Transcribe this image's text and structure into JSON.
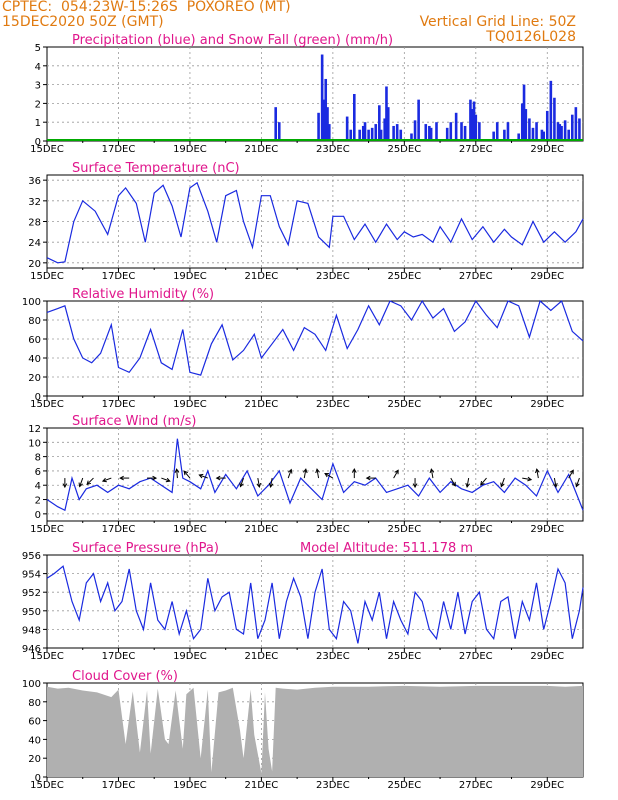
{
  "header": {
    "line1": "CPTEC:  054:23W-15:26S  POXOREO (MT)",
    "line2": "15DEC2020 50Z (GMT)",
    "right1": "Vertical Grid Line: 50Z",
    "right2": "TQ0126L028"
  },
  "colors": {
    "title": "#e0168c",
    "header": "#e07a10",
    "series": "#1a2ae0",
    "snow": "#00aa00",
    "cloud": "#b0b0b0",
    "grid": "#9a9a9a"
  },
  "x_axis": {
    "range_days": [
      15,
      30
    ],
    "ticks": [
      "15DEC",
      "17DEC",
      "19DEC",
      "21DEC",
      "23DEC",
      "25DEC",
      "27DEC",
      "29DEC"
    ],
    "tick_days": [
      15,
      17,
      19,
      21,
      23,
      25,
      27,
      29
    ]
  },
  "chart_data": [
    {
      "id": "precip",
      "type": "bar",
      "title": "Precipitation (blue) and Snow Fall (green) (mm/h)",
      "ylim": [
        0,
        5
      ],
      "yticks": [
        "0",
        "1",
        "2",
        "3",
        "4",
        "5"
      ],
      "series": [
        {
          "name": "Precipitation",
          "x": [
            21.4,
            21.5,
            22.6,
            22.7,
            22.75,
            22.8,
            22.85,
            22.9,
            23.4,
            23.5,
            23.6,
            23.75,
            23.85,
            23.9,
            24.0,
            24.1,
            24.2,
            24.3,
            24.35,
            24.45,
            24.5,
            24.55,
            24.7,
            24.8,
            24.9,
            25.2,
            25.3,
            25.4,
            25.6,
            25.7,
            25.75,
            25.9,
            26.2,
            26.3,
            26.45,
            26.6,
            26.7,
            26.85,
            26.9,
            26.95,
            27.0,
            27.1,
            27.5,
            27.6,
            27.8,
            27.9,
            28.2,
            28.3,
            28.35,
            28.4,
            28.5,
            28.6,
            28.7,
            28.85,
            28.9,
            29.0,
            29.1,
            29.2,
            29.3,
            29.35,
            29.4,
            29.5,
            29.6,
            29.7,
            29.8,
            29.9
          ],
          "values": [
            1.8,
            1.0,
            1.5,
            4.6,
            2.2,
            3.3,
            1.8,
            0.9,
            1.3,
            0.6,
            2.5,
            0.6,
            0.8,
            1.0,
            0.6,
            0.7,
            0.9,
            1.9,
            0.6,
            1.2,
            2.9,
            1.8,
            0.8,
            0.9,
            0.6,
            0.4,
            1.1,
            2.2,
            0.9,
            0.8,
            0.7,
            1.0,
            0.7,
            1.0,
            1.5,
            1.0,
            0.8,
            2.2,
            1.7,
            2.1,
            1.4,
            1.0,
            0.5,
            1.0,
            0.6,
            1.0,
            0.4,
            2.0,
            3.0,
            1.7,
            1.2,
            0.7,
            1.0,
            0.6,
            0.5,
            1.6,
            3.2,
            2.3,
            1.0,
            0.9,
            0.8,
            1.1,
            0.6,
            1.4,
            1.8,
            1.2
          ]
        },
        {
          "name": "Snow Fall",
          "x": [
            15,
            30
          ],
          "values": [
            0,
            0
          ]
        }
      ]
    },
    {
      "id": "temp",
      "type": "line",
      "title": "Surface Temperature (nC)",
      "ylim": [
        19,
        37
      ],
      "yticks": [
        "20",
        "24",
        "28",
        "32",
        "36"
      ],
      "series": [
        {
          "name": "Surface Temperature",
          "x": [
            15,
            15.3,
            15.5,
            15.75,
            16.0,
            16.35,
            16.7,
            17.0,
            17.2,
            17.5,
            17.75,
            18.0,
            18.25,
            18.5,
            18.75,
            19.0,
            19.2,
            19.5,
            19.75,
            20.0,
            20.3,
            20.5,
            20.75,
            21.0,
            21.25,
            21.5,
            21.75,
            22.0,
            22.3,
            22.6,
            22.9,
            23.0,
            23.3,
            23.6,
            23.9,
            24.2,
            24.5,
            24.8,
            25.0,
            25.25,
            25.5,
            25.8,
            26.0,
            26.3,
            26.6,
            26.9,
            27.2,
            27.5,
            27.8,
            28.0,
            28.3,
            28.6,
            28.9,
            29.2,
            29.5,
            29.8,
            30
          ],
          "values": [
            21,
            20,
            20.2,
            28,
            32,
            30,
            25.5,
            33,
            34.5,
            31.5,
            24,
            33.5,
            35,
            31,
            25,
            34.5,
            35.5,
            30,
            24,
            33,
            34,
            28,
            23,
            33,
            33,
            27,
            23.5,
            32,
            31.5,
            25,
            23,
            29,
            29,
            24.5,
            27.5,
            24,
            27.5,
            24.5,
            26,
            25,
            25.5,
            24,
            27,
            24,
            28.5,
            24.5,
            27,
            24,
            26.5,
            25,
            23.5,
            28,
            24,
            26,
            24,
            26,
            28.5
          ]
        }
      ]
    },
    {
      "id": "rh",
      "type": "line",
      "title": "Relative Humidity (%)",
      "ylim": [
        0,
        100
      ],
      "yticks": [
        "0",
        "20",
        "40",
        "60",
        "80",
        "100"
      ],
      "series": [
        {
          "name": "Relative Humidity",
          "x": [
            15,
            15.3,
            15.5,
            15.75,
            16.0,
            16.25,
            16.5,
            16.8,
            17.0,
            17.3,
            17.6,
            17.9,
            18.2,
            18.5,
            18.8,
            19.0,
            19.3,
            19.6,
            19.9,
            20.2,
            20.5,
            20.8,
            21.0,
            21.3,
            21.6,
            21.9,
            22.2,
            22.5,
            22.8,
            23.1,
            23.4,
            23.7,
            24.0,
            24.3,
            24.6,
            24.9,
            25.2,
            25.5,
            25.8,
            26.1,
            26.4,
            26.7,
            27.0,
            27.3,
            27.6,
            27.9,
            28.2,
            28.5,
            28.8,
            29.1,
            29.4,
            29.7,
            30
          ],
          "values": [
            88,
            92,
            95,
            60,
            40,
            35,
            45,
            75,
            30,
            25,
            40,
            70,
            35,
            28,
            70,
            25,
            22,
            55,
            75,
            38,
            48,
            65,
            40,
            55,
            70,
            48,
            72,
            65,
            48,
            85,
            50,
            70,
            95,
            75,
            100,
            95,
            80,
            100,
            82,
            92,
            68,
            78,
            100,
            85,
            72,
            100,
            95,
            62,
            100,
            90,
            100,
            68,
            58
          ]
        }
      ]
    },
    {
      "id": "wind",
      "type": "line",
      "title": "Surface Wind (m/s)",
      "ylim": [
        -1,
        12
      ],
      "yticks": [
        "0",
        "2",
        "4",
        "6",
        "8",
        "10",
        "12"
      ],
      "series": [
        {
          "name": "Surface Wind",
          "x": [
            15,
            15.3,
            15.5,
            15.7,
            15.9,
            16.1,
            16.4,
            16.7,
            17.0,
            17.3,
            17.6,
            17.9,
            18.2,
            18.5,
            18.65,
            18.8,
            19.0,
            19.3,
            19.5,
            19.7,
            20.0,
            20.3,
            20.6,
            20.9,
            21.2,
            21.5,
            21.8,
            22.1,
            22.4,
            22.7,
            23.0,
            23.3,
            23.6,
            23.9,
            24.2,
            24.5,
            24.8,
            25.1,
            25.4,
            25.7,
            26.0,
            26.3,
            26.6,
            26.9,
            27.2,
            27.5,
            27.8,
            28.1,
            28.4,
            28.7,
            29.0,
            29.3,
            29.6,
            29.8,
            30
          ],
          "values": [
            2,
            1,
            0.5,
            5,
            2,
            3.5,
            4,
            3,
            4,
            3.5,
            4.5,
            5,
            4,
            3,
            10.5,
            5,
            4.5,
            3.5,
            6,
            3,
            5.5,
            3.5,
            6,
            2.5,
            4,
            6,
            1.5,
            5,
            3.5,
            2,
            7,
            3,
            4.5,
            4,
            5,
            3,
            3.5,
            4,
            2.5,
            5,
            3,
            4.5,
            3.5,
            3,
            4,
            4.5,
            3,
            5,
            4,
            2.5,
            6,
            3,
            5.5,
            3,
            0.5
          ]
        }
      ],
      "arrows": [
        {
          "day": 15.5,
          "dir": 180
        },
        {
          "day": 16.0,
          "dir": 200
        },
        {
          "day": 16.3,
          "dir": 225
        },
        {
          "day": 16.8,
          "dir": 250
        },
        {
          "day": 17.3,
          "dir": 270
        },
        {
          "day": 17.8,
          "dir": 90
        },
        {
          "day": 18.2,
          "dir": 110
        },
        {
          "day": 18.65,
          "dir": 355
        },
        {
          "day": 19.0,
          "dir": 320
        },
        {
          "day": 19.5,
          "dir": 290
        },
        {
          "day": 20.0,
          "dir": 270
        },
        {
          "day": 20.5,
          "dir": 200
        },
        {
          "day": 20.9,
          "dir": 170
        },
        {
          "day": 21.3,
          "dir": 190
        },
        {
          "day": 21.75,
          "dir": 20
        },
        {
          "day": 22.2,
          "dir": 10
        },
        {
          "day": 22.6,
          "dir": 350
        },
        {
          "day": 23.0,
          "dir": 300
        },
        {
          "day": 23.6,
          "dir": 0
        },
        {
          "day": 24.2,
          "dir": 270
        },
        {
          "day": 24.7,
          "dir": 30
        },
        {
          "day": 25.3,
          "dir": 180
        },
        {
          "day": 25.8,
          "dir": 350
        },
        {
          "day": 26.3,
          "dir": 150
        },
        {
          "day": 26.8,
          "dir": 190
        },
        {
          "day": 27.3,
          "dir": 220
        },
        {
          "day": 27.8,
          "dir": 200
        },
        {
          "day": 28.3,
          "dir": 100
        },
        {
          "day": 28.75,
          "dir": 350
        },
        {
          "day": 29.2,
          "dir": 170
        },
        {
          "day": 29.6,
          "dir": 30
        },
        {
          "day": 29.9,
          "dir": 200
        }
      ]
    },
    {
      "id": "press",
      "type": "line",
      "title": "Surface Pressure (hPa)",
      "ylim": [
        946,
        956
      ],
      "yticks": [
        "946",
        "948",
        "950",
        "952",
        "954",
        "956"
      ],
      "series": [
        {
          "name": "Surface Pressure",
          "x": [
            15,
            15.2,
            15.45,
            15.7,
            15.9,
            16.1,
            16.3,
            16.5,
            16.7,
            16.9,
            17.1,
            17.3,
            17.5,
            17.7,
            17.9,
            18.1,
            18.3,
            18.5,
            18.7,
            18.9,
            19.1,
            19.3,
            19.5,
            19.7,
            19.9,
            20.1,
            20.3,
            20.5,
            20.7,
            20.9,
            21.1,
            21.3,
            21.5,
            21.7,
            21.9,
            22.1,
            22.3,
            22.5,
            22.7,
            22.9,
            23.1,
            23.3,
            23.5,
            23.7,
            23.9,
            24.1,
            24.3,
            24.5,
            24.7,
            24.9,
            25.1,
            25.3,
            25.5,
            25.7,
            25.9,
            26.1,
            26.3,
            26.5,
            26.7,
            26.9,
            27.1,
            27.3,
            27.5,
            27.7,
            27.9,
            28.1,
            28.3,
            28.5,
            28.7,
            28.9,
            29.1,
            29.3,
            29.5,
            29.7,
            29.9,
            30
          ],
          "values": [
            953.5,
            954,
            954.8,
            951,
            949,
            953,
            954,
            951,
            953,
            950,
            951,
            954.5,
            950,
            948,
            953,
            949,
            948,
            951,
            947.5,
            950,
            947,
            948,
            953.5,
            950,
            951.5,
            952,
            948,
            947.5,
            953,
            947,
            949,
            953,
            947,
            951,
            953.5,
            951.5,
            947,
            952,
            954.5,
            948,
            947,
            951,
            950,
            946.5,
            951,
            949,
            952,
            947,
            951,
            949,
            947.5,
            952,
            951,
            948,
            947,
            951,
            948,
            952,
            947.5,
            951,
            952,
            948,
            947,
            951,
            951.5,
            947,
            951,
            949,
            953,
            948,
            951,
            954.5,
            953,
            947,
            950,
            952.5
          ]
        }
      ],
      "annotation": "Model Altitude: 511.178 m"
    },
    {
      "id": "cloud",
      "type": "area",
      "title": "Cloud Cover (%)",
      "ylim": [
        0,
        100
      ],
      "yticks": [
        "0",
        "20",
        "40",
        "60",
        "80",
        "100"
      ],
      "series": [
        {
          "name": "Cloud Cover",
          "x": [
            15,
            15.3,
            15.6,
            16.0,
            16.4,
            16.8,
            17.0,
            17.2,
            17.4,
            17.6,
            17.8,
            17.9,
            18.1,
            18.3,
            18.4,
            18.6,
            18.8,
            18.9,
            19.1,
            19.3,
            19.5,
            19.6,
            19.8,
            20.0,
            20.2,
            20.4,
            20.5,
            20.7,
            20.8,
            21.0,
            21.1,
            21.2,
            21.3,
            21.4,
            21.6,
            22.0,
            22.5,
            23.0,
            24.0,
            25.0,
            26.0,
            27.0,
            28.0,
            29.0,
            29.5,
            30
          ],
          "values": [
            96,
            94,
            95,
            92,
            90,
            85,
            93,
            35,
            91,
            26,
            92,
            25,
            94,
            40,
            35,
            92,
            30,
            88,
            95,
            20,
            93,
            5,
            90,
            92,
            95,
            50,
            20,
            93,
            45,
            4,
            90,
            30,
            6,
            95,
            94,
            93,
            95,
            96,
            96,
            97,
            96,
            97,
            97,
            97,
            96,
            97
          ]
        }
      ]
    }
  ]
}
